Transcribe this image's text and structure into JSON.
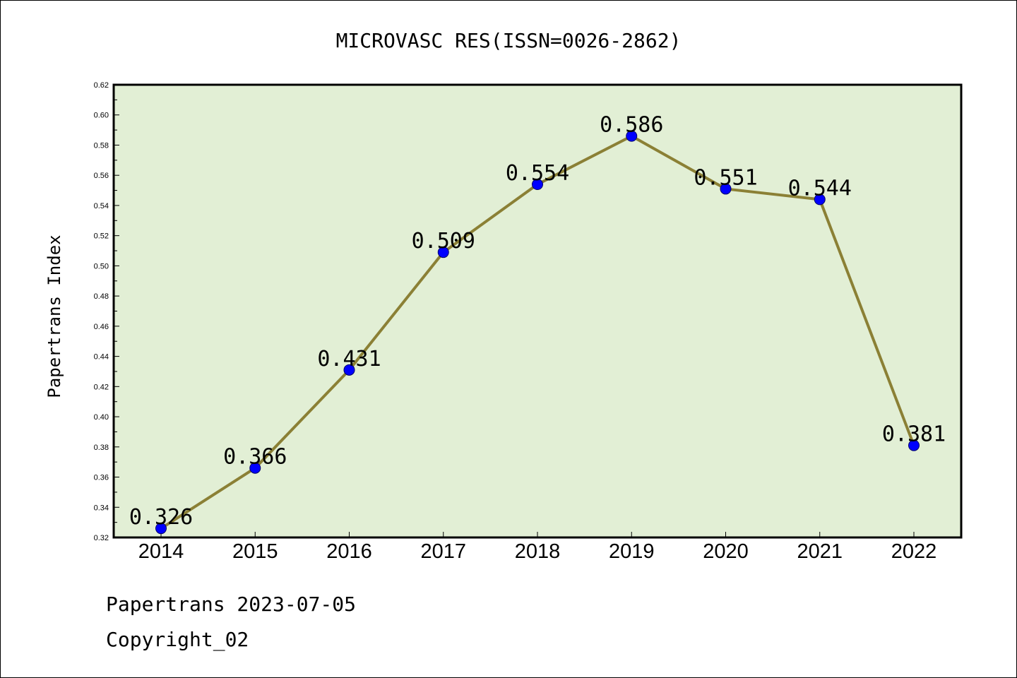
{
  "chart_data": {
    "type": "line",
    "title": "MICROVASC RES(ISSN=0026-2862)",
    "ylabel": "Papertrans Index",
    "xlabel": "",
    "categories": [
      "2014",
      "2015",
      "2016",
      "2017",
      "2018",
      "2019",
      "2020",
      "2021",
      "2022"
    ],
    "values": [
      0.326,
      0.366,
      0.431,
      0.509,
      0.554,
      0.586,
      0.551,
      0.544,
      0.381
    ],
    "data_labels": [
      "0.326",
      "0.366",
      "0.431",
      "0.509",
      "0.554",
      "0.586",
      "0.551",
      "0.544",
      "0.381"
    ],
    "ylim": [
      0.32,
      0.62
    ],
    "yticks": [
      "0.32",
      "0.34",
      "0.36",
      "0.38",
      "0.40",
      "0.42",
      "0.44",
      "0.46",
      "0.48",
      "0.50",
      "0.52",
      "0.54",
      "0.56",
      "0.58",
      "0.60",
      "0.62"
    ],
    "grid": false,
    "colors": {
      "plot_background": "#e2efd5",
      "line": "#8b8035",
      "marker": "#0000ff"
    }
  },
  "footer": {
    "line1": "Papertrans 2023-07-05",
    "line2": "Copyright_02"
  }
}
